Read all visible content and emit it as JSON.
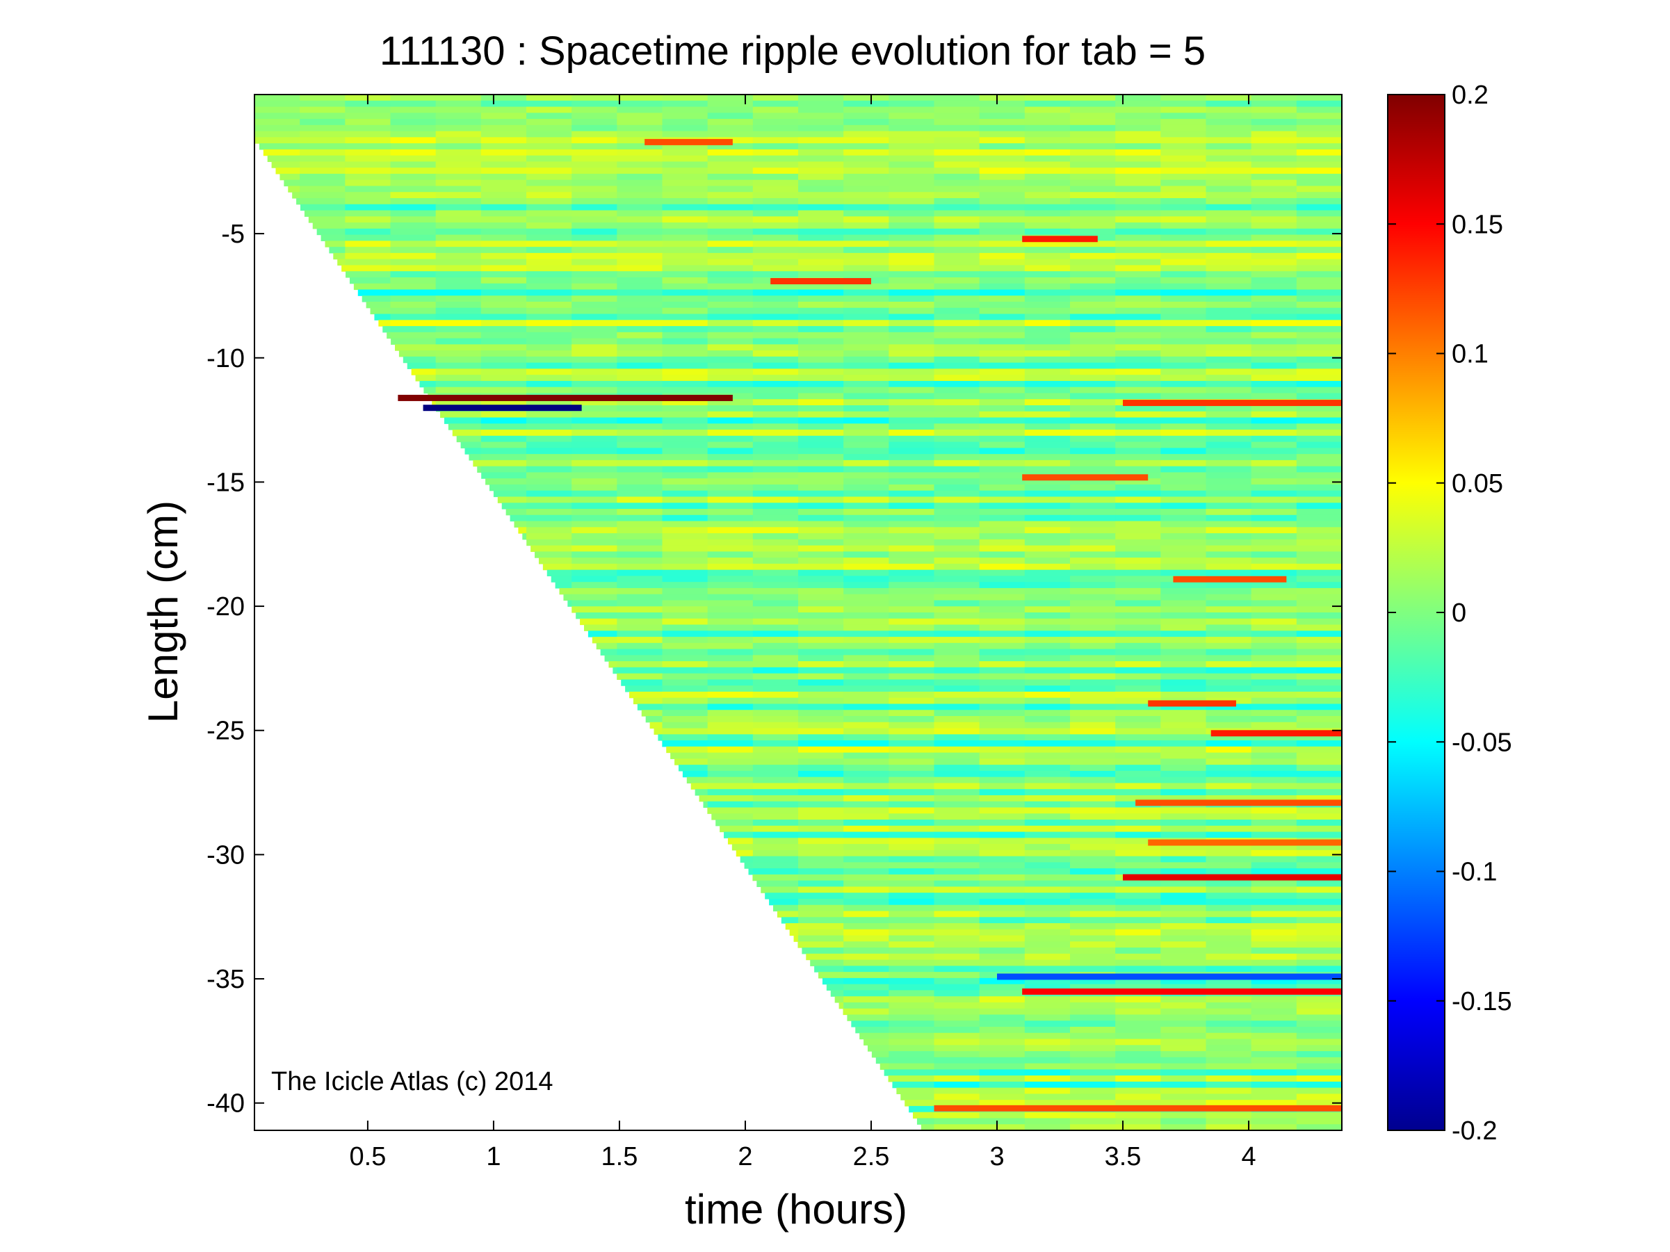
{
  "chart_data": {
    "type": "heatmap",
    "title": "111130 : Spacetime ripple evolution for tab = 5",
    "xlabel": "time (hours)",
    "ylabel": "Length (cm)",
    "xlim": [
      0.05,
      4.37
    ],
    "ylim": [
      -41.1,
      0.6
    ],
    "xticks": [
      {
        "value": 0.5,
        "label": "0.5"
      },
      {
        "value": 1,
        "label": "1"
      },
      {
        "value": 1.5,
        "label": "1.5"
      },
      {
        "value": 2,
        "label": "2"
      },
      {
        "value": 2.5,
        "label": "2.5"
      },
      {
        "value": 3,
        "label": "3"
      },
      {
        "value": 3.5,
        "label": "3.5"
      },
      {
        "value": 4,
        "label": "4"
      }
    ],
    "yticks": [
      {
        "value": -5,
        "label": "-5"
      },
      {
        "value": -10,
        "label": "-10"
      },
      {
        "value": -15,
        "label": "-15"
      },
      {
        "value": -20,
        "label": "-20"
      },
      {
        "value": -25,
        "label": "-25"
      },
      {
        "value": -30,
        "label": "-30"
      },
      {
        "value": -35,
        "label": "-35"
      },
      {
        "value": -40,
        "label": "-40"
      }
    ],
    "colorbar": {
      "colormap": "jet",
      "range": [
        -0.2,
        0.2
      ],
      "ticks": [
        {
          "value": 0.2,
          "label": "0.2"
        },
        {
          "value": 0.15,
          "label": "0.15"
        },
        {
          "value": 0.1,
          "label": "0.1"
        },
        {
          "value": 0.05,
          "label": "0.05"
        },
        {
          "value": 0,
          "label": "0"
        },
        {
          "value": -0.05,
          "label": "-0.05"
        },
        {
          "value": -0.1,
          "label": "-0.1"
        },
        {
          "value": -0.15,
          "label": "-0.15"
        },
        {
          "value": -0.2,
          "label": "-0.2"
        }
      ]
    },
    "data_boundary": [
      [
        0.05,
        -1.2
      ],
      [
        2.7,
        -41.0
      ]
    ],
    "features": [
      {
        "t_start": 0.62,
        "t_end": 1.95,
        "length": -11.6,
        "value": 0.2
      },
      {
        "t_start": 0.72,
        "t_end": 1.35,
        "length": -12.0,
        "value": -0.2
      },
      {
        "t_start": 1.6,
        "t_end": 1.95,
        "length": -1.3,
        "value": 0.12
      },
      {
        "t_start": 2.1,
        "t_end": 2.5,
        "length": -6.9,
        "value": 0.13
      },
      {
        "t_start": 3.1,
        "t_end": 3.4,
        "length": -5.2,
        "value": 0.14
      },
      {
        "t_start": 3.5,
        "t_end": 4.37,
        "length": -11.8,
        "value": 0.13
      },
      {
        "t_start": 3.1,
        "t_end": 3.6,
        "length": -14.8,
        "value": 0.12
      },
      {
        "t_start": 3.7,
        "t_end": 4.15,
        "length": -18.9,
        "value": 0.12
      },
      {
        "t_start": 3.6,
        "t_end": 3.95,
        "length": -23.9,
        "value": 0.13
      },
      {
        "t_start": 3.85,
        "t_end": 4.37,
        "length": -25.1,
        "value": 0.14
      },
      {
        "t_start": 3.55,
        "t_end": 4.37,
        "length": -27.9,
        "value": 0.12
      },
      {
        "t_start": 3.6,
        "t_end": 4.37,
        "length": -29.5,
        "value": 0.11
      },
      {
        "t_start": 3.5,
        "t_end": 4.37,
        "length": -30.9,
        "value": 0.16
      },
      {
        "t_start": 3.1,
        "t_end": 4.37,
        "length": -35.5,
        "value": 0.15
      },
      {
        "t_start": 3.0,
        "t_end": 4.37,
        "length": -34.9,
        "value": -0.12
      },
      {
        "t_start": 2.75,
        "t_end": 4.37,
        "length": -40.2,
        "value": 0.12
      }
    ]
  },
  "watermark": "The Icicle Atlas (c) 2014"
}
